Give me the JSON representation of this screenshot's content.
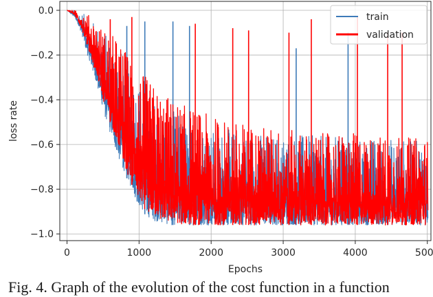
{
  "caption": "Fig. 4. Graph of the evolution of the cost function in a function",
  "chart_data": {
    "type": "line",
    "xlabel": "Epochs",
    "ylabel": "loss rate",
    "xlim": [
      -100,
      5050
    ],
    "ylim": [
      -1.03,
      0.04
    ],
    "x_ticks": [
      0,
      1000,
      2000,
      3000,
      4000,
      5000
    ],
    "x_tick_labels": [
      "0",
      "1000",
      "2000",
      "3000",
      "4000",
      "5000"
    ],
    "y_ticks": [
      0.0,
      -0.2,
      -0.4,
      -0.6,
      -0.8,
      -1.0
    ],
    "y_tick_labels": [
      "0.0",
      "−0.2",
      "−0.4",
      "−0.6",
      "−0.8",
      "−1.0"
    ],
    "grid": true,
    "legend_position": "top-right",
    "series": [
      {
        "name": "train",
        "color": "#3d7ab8",
        "x": [
          0,
          100,
          200,
          300,
          400,
          500,
          600,
          700,
          800,
          900,
          1000,
          1100,
          1200,
          1300,
          1400,
          1500,
          1600,
          1700,
          1800,
          1900,
          2000,
          2200,
          2400,
          2600,
          2800,
          3000,
          3200,
          3400,
          3600,
          3800,
          4000,
          4200,
          4400,
          4600,
          4800,
          5000
        ],
        "y_low": [
          0.0,
          -0.03,
          -0.1,
          -0.22,
          -0.32,
          -0.45,
          -0.55,
          -0.65,
          -0.73,
          -0.8,
          -0.88,
          -0.92,
          -0.94,
          -0.95,
          -0.96,
          -0.96,
          -0.96,
          -0.96,
          -0.96,
          -0.96,
          -0.96,
          -0.96,
          -0.96,
          -0.96,
          -0.96,
          -0.96,
          -0.96,
          -0.96,
          -0.96,
          -0.96,
          -0.96,
          -0.96,
          -0.96,
          -0.96,
          -0.96,
          -0.96
        ],
        "y_high": [
          0.0,
          0.0,
          -0.01,
          -0.03,
          -0.06,
          -0.09,
          -0.12,
          -0.15,
          -0.2,
          -0.25,
          -0.3,
          -0.34,
          -0.38,
          -0.41,
          -0.43,
          -0.45,
          -0.47,
          -0.49,
          -0.5,
          -0.51,
          -0.52,
          -0.53,
          -0.54,
          -0.54,
          -0.55,
          -0.55,
          -0.55,
          -0.56,
          -0.56,
          -0.56,
          -0.57,
          -0.57,
          -0.57,
          -0.57,
          -0.58,
          -0.58
        ],
        "spikes": [
          [
            830,
            -0.07
          ],
          [
            1080,
            -0.05
          ],
          [
            1470,
            -0.05
          ],
          [
            1700,
            -0.07
          ],
          [
            3180,
            -0.17
          ],
          [
            3900,
            -0.1
          ]
        ]
      },
      {
        "name": "validation",
        "color": "#ff0000",
        "x": [
          0,
          100,
          200,
          300,
          400,
          500,
          600,
          700,
          800,
          900,
          1000,
          1100,
          1200,
          1300,
          1400,
          1500,
          1600,
          1700,
          1800,
          1900,
          2000,
          2200,
          2400,
          2600,
          2800,
          3000,
          3200,
          3400,
          3600,
          3800,
          4000,
          4200,
          4400,
          4600,
          4800,
          5000
        ],
        "y_low": [
          0.0,
          -0.02,
          -0.08,
          -0.18,
          -0.28,
          -0.4,
          -0.5,
          -0.6,
          -0.7,
          -0.78,
          -0.86,
          -0.9,
          -0.92,
          -0.94,
          -0.95,
          -0.95,
          -0.96,
          -0.96,
          -0.96,
          -0.96,
          -0.96,
          -0.96,
          -0.96,
          -0.96,
          -0.96,
          -0.96,
          -0.96,
          -0.96,
          -0.96,
          -0.96,
          -0.96,
          -0.96,
          -0.96,
          -0.96,
          -0.96,
          -0.96
        ],
        "y_high": [
          0.0,
          0.0,
          -0.01,
          -0.02,
          -0.05,
          -0.08,
          -0.1,
          -0.13,
          -0.17,
          -0.22,
          -0.26,
          -0.3,
          -0.33,
          -0.36,
          -0.38,
          -0.4,
          -0.42,
          -0.43,
          -0.45,
          -0.46,
          -0.47,
          -0.49,
          -0.5,
          -0.51,
          -0.52,
          -0.53,
          -0.54,
          -0.55,
          -0.55,
          -0.55,
          -0.55,
          -0.56,
          -0.56,
          -0.56,
          -0.57,
          -0.57
        ],
        "spikes": [
          [
            600,
            -0.04
          ],
          [
            900,
            -0.03
          ],
          [
            1780,
            -0.06
          ],
          [
            2300,
            -0.08
          ],
          [
            2520,
            -0.09
          ],
          [
            3080,
            -0.1
          ],
          [
            3390,
            -0.04
          ],
          [
            4030,
            -0.03
          ],
          [
            4450,
            -0.1
          ],
          [
            4650,
            -0.1
          ]
        ]
      }
    ]
  }
}
